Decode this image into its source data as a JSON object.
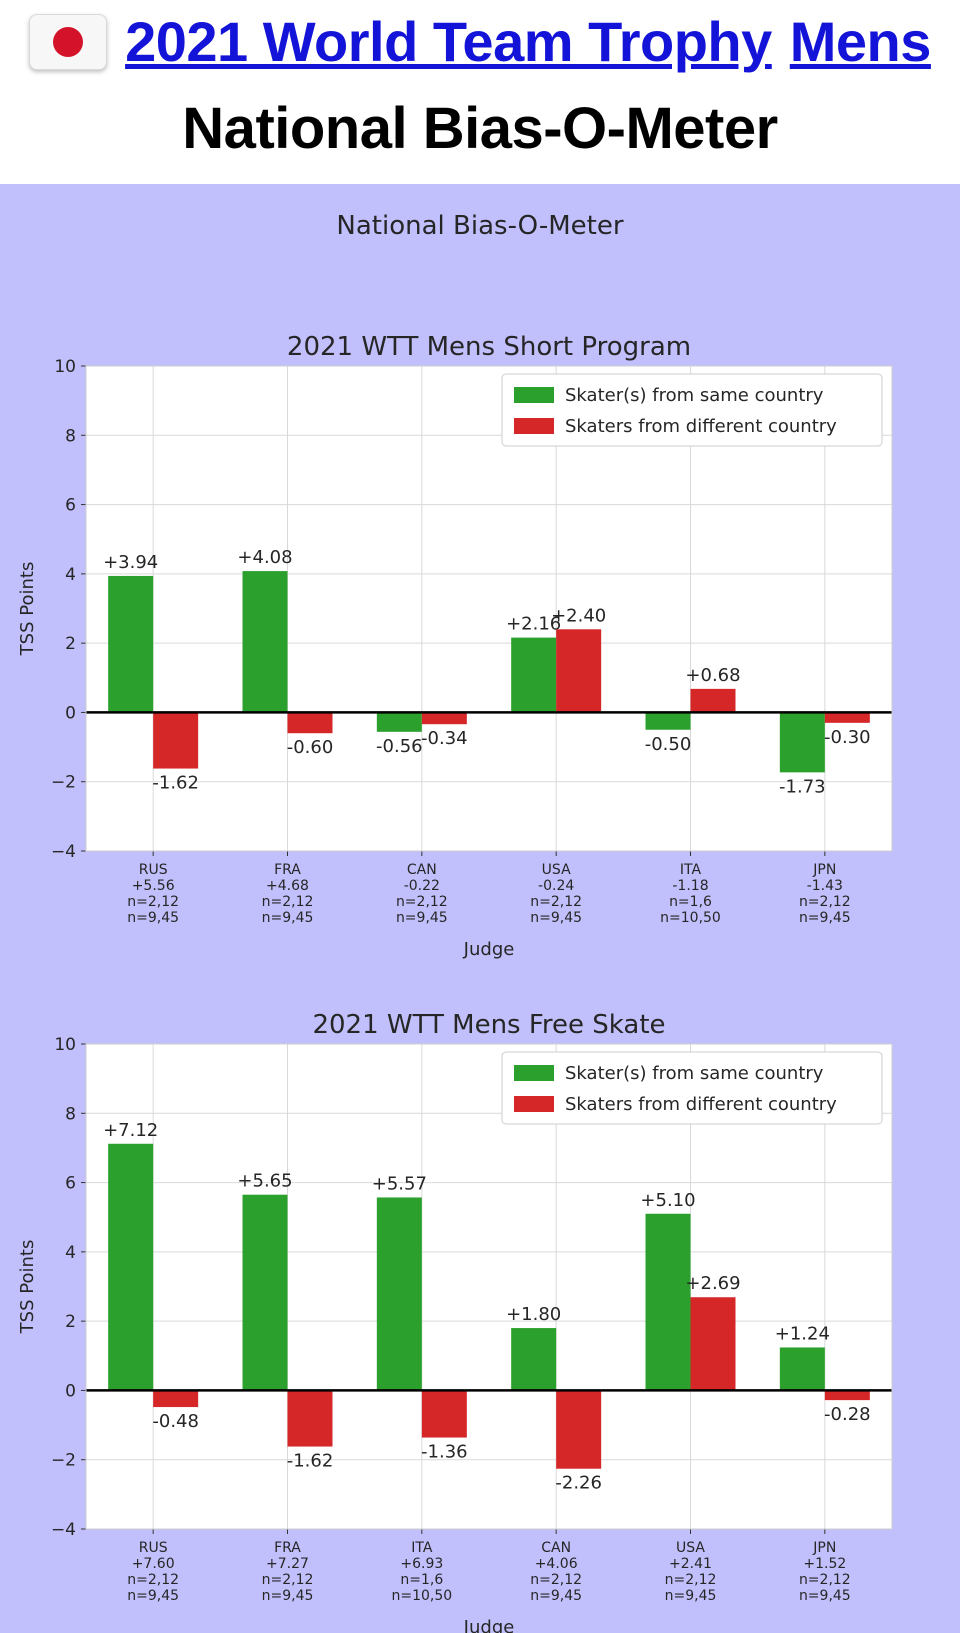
{
  "header": {
    "flag_icon": "japan-flag-icon",
    "title_part1": "2021 World Team Trophy",
    "title_part2": "Mens",
    "title_color": "#1414d8",
    "subtitle": "National Bias-O-Meter"
  },
  "figure_title": "National Bias-O-Meter",
  "colors": {
    "panel_bg": "#c2c0fc",
    "same": "#2ca02c",
    "diff": "#d62728"
  },
  "chart_data": [
    {
      "type": "bar",
      "title": "2021 WTT Mens Short Program",
      "xlabel": "Judge",
      "ylabel": "TSS Points",
      "ylim": [
        -4,
        10
      ],
      "yticks": [
        "10",
        "8",
        "6",
        "4",
        "2",
        "0",
        "−2",
        "−4"
      ],
      "grid": true,
      "legend_position": "top-right",
      "categories": [
        [
          "RUS",
          "+5.56",
          "n=2,12",
          "n=9,45"
        ],
        [
          "FRA",
          "+4.68",
          "n=2,12",
          "n=9,45"
        ],
        [
          "CAN",
          "-0.22",
          "n=2,12",
          "n=9,45"
        ],
        [
          "USA",
          "-0.24",
          "n=2,12",
          "n=9,45"
        ],
        [
          "ITA",
          "-1.18",
          "n=1,6",
          "n=10,50"
        ],
        [
          "JPN",
          "-1.43",
          "n=2,12",
          "n=9,45"
        ]
      ],
      "series": [
        {
          "name": "Skater(s) from same country",
          "color": "#2ca02c",
          "values": [
            3.94,
            4.08,
            -0.56,
            2.16,
            -0.5,
            -1.73
          ],
          "labels": [
            "+3.94",
            "+4.08",
            "-0.56",
            "+2.16",
            "-0.50",
            "-1.73"
          ]
        },
        {
          "name": "Skaters from different country",
          "color": "#d62728",
          "values": [
            -1.62,
            -0.6,
            -0.34,
            2.4,
            0.68,
            -0.3
          ],
          "labels": [
            "-1.62",
            "-0.60",
            "-0.34",
            "+2.40",
            "+0.68",
            "-0.30"
          ]
        }
      ]
    },
    {
      "type": "bar",
      "title": "2021 WTT Mens Free Skate",
      "xlabel": "Judge",
      "ylabel": "TSS Points",
      "ylim": [
        -4,
        10
      ],
      "yticks": [
        "10",
        "8",
        "6",
        "4",
        "2",
        "0",
        "−2",
        "−4"
      ],
      "grid": true,
      "legend_position": "top-right",
      "categories": [
        [
          "RUS",
          "+7.60",
          "n=2,12",
          "n=9,45"
        ],
        [
          "FRA",
          "+7.27",
          "n=2,12",
          "n=9,45"
        ],
        [
          "ITA",
          "+6.93",
          "n=1,6",
          "n=10,50"
        ],
        [
          "CAN",
          "+4.06",
          "n=2,12",
          "n=9,45"
        ],
        [
          "USA",
          "+2.41",
          "n=2,12",
          "n=9,45"
        ],
        [
          "JPN",
          "+1.52",
          "n=2,12",
          "n=9,45"
        ]
      ],
      "series": [
        {
          "name": "Skater(s) from same country",
          "color": "#2ca02c",
          "values": [
            7.12,
            5.65,
            5.57,
            1.8,
            5.1,
            1.24
          ],
          "labels": [
            "+7.12",
            "+5.65",
            "+5.57",
            "+1.80",
            "+5.10",
            "+1.24"
          ]
        },
        {
          "name": "Skaters from different country",
          "color": "#d62728",
          "values": [
            -0.48,
            -1.62,
            -1.36,
            -2.26,
            2.69,
            -0.28
          ],
          "labels": [
            "-0.48",
            "-1.62",
            "-1.36",
            "-2.26",
            "+2.69",
            "-0.28"
          ]
        }
      ]
    }
  ]
}
